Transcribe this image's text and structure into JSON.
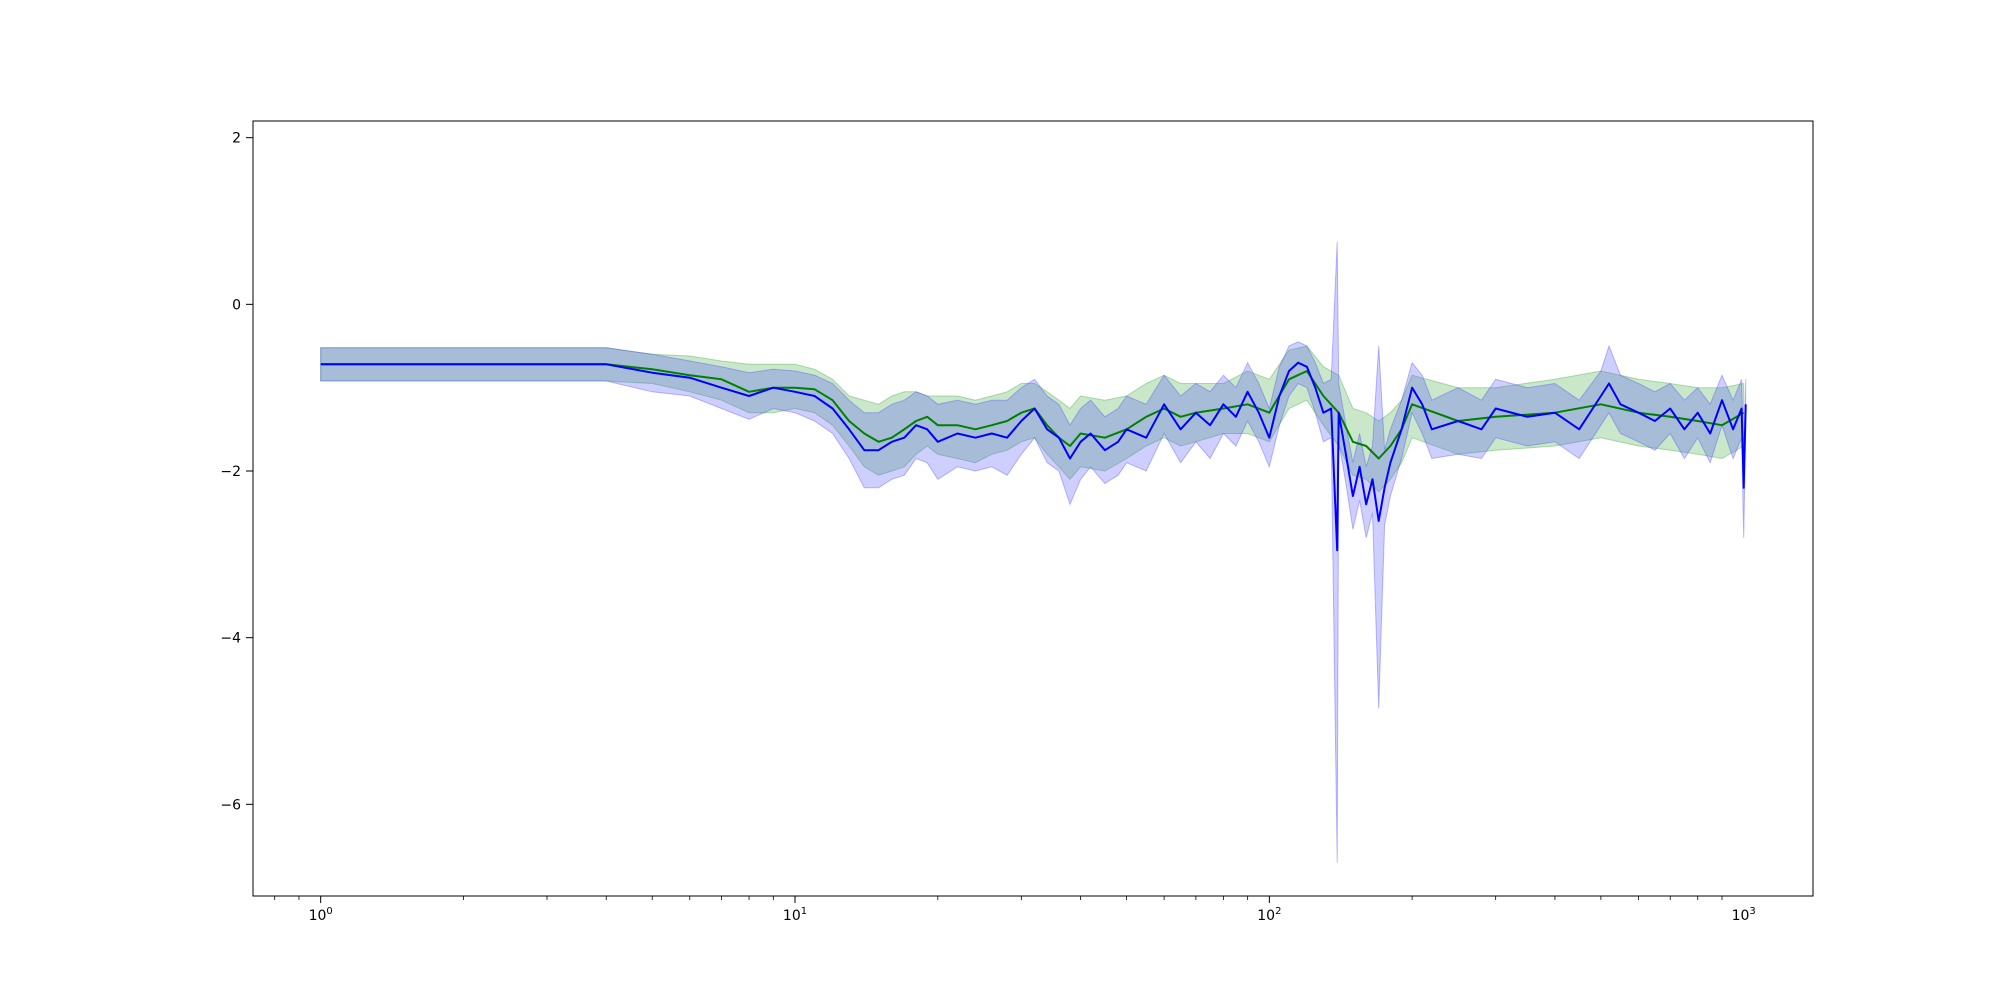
{
  "chart_data": {
    "type": "line",
    "title": "",
    "xlabel": "",
    "ylabel": "",
    "xscale": "log",
    "xlim": [
      0.72,
      1400
    ],
    "ylim": [
      -7.1,
      2.2
    ],
    "grid": false,
    "x_tick_labels": [
      {
        "value": 1,
        "label": "10",
        "exp": "0"
      },
      {
        "value": 10,
        "label": "10",
        "exp": "1"
      },
      {
        "value": 100,
        "label": "10",
        "exp": "2"
      },
      {
        "value": 1000,
        "label": "10",
        "exp": "3"
      }
    ],
    "y_tick_labels": [
      {
        "value": 2,
        "label": "2"
      },
      {
        "value": 0,
        "label": "0"
      },
      {
        "value": -2,
        "label": "−2"
      },
      {
        "value": -4,
        "label": "−4"
      },
      {
        "value": -6,
        "label": "−6"
      }
    ],
    "series": [
      {
        "color": "#008000",
        "band_color": "#2ca02c",
        "x": [
          1,
          2,
          3,
          4,
          5,
          6,
          7,
          8,
          9,
          10,
          11,
          12,
          13,
          14,
          15,
          16,
          17,
          18,
          19,
          20,
          22,
          24,
          26,
          28,
          30,
          32,
          34,
          36,
          38,
          40,
          45,
          50,
          55,
          60,
          65,
          70,
          80,
          90,
          100,
          110,
          120,
          130,
          140,
          150,
          160,
          170,
          180,
          190,
          200,
          250,
          300,
          400,
          500,
          600,
          700,
          800,
          900,
          1000
        ],
        "y": [
          -0.72,
          -0.72,
          -0.72,
          -0.72,
          -0.78,
          -0.85,
          -0.9,
          -1.05,
          -1.0,
          -1.0,
          -1.02,
          -1.15,
          -1.4,
          -1.55,
          -1.65,
          -1.6,
          -1.5,
          -1.4,
          -1.35,
          -1.45,
          -1.45,
          -1.5,
          -1.45,
          -1.4,
          -1.3,
          -1.25,
          -1.45,
          -1.6,
          -1.7,
          -1.55,
          -1.6,
          -1.5,
          -1.35,
          -1.25,
          -1.35,
          -1.3,
          -1.25,
          -1.2,
          -1.3,
          -0.9,
          -0.8,
          -1.1,
          -1.3,
          -1.65,
          -1.7,
          -1.85,
          -1.7,
          -1.5,
          -1.2,
          -1.4,
          -1.35,
          -1.3,
          -1.2,
          -1.3,
          -1.35,
          -1.4,
          -1.45,
          -1.3
        ],
        "upper": [
          -0.52,
          -0.52,
          -0.52,
          -0.52,
          -0.6,
          -0.62,
          -0.68,
          -0.72,
          -0.72,
          -0.72,
          -0.78,
          -0.9,
          -1.1,
          -1.15,
          -1.2,
          -1.1,
          -1.05,
          -1.05,
          -1.1,
          -1.1,
          -1.1,
          -1.15,
          -1.1,
          -1.05,
          -0.95,
          -0.95,
          -1.05,
          -1.15,
          -1.25,
          -1.1,
          -1.15,
          -1.1,
          -0.95,
          -0.85,
          -0.95,
          -0.95,
          -0.95,
          -0.8,
          -0.9,
          -0.55,
          -0.5,
          -0.75,
          -0.85,
          -1.25,
          -1.3,
          -1.4,
          -1.3,
          -1.15,
          -0.85,
          -1.0,
          -1.0,
          -0.9,
          -0.8,
          -0.9,
          -0.95,
          -1.0,
          -1.0,
          -0.95
        ],
        "lower": [
          -0.92,
          -0.92,
          -0.92,
          -0.92,
          -0.95,
          -1.05,
          -1.15,
          -1.3,
          -1.3,
          -1.25,
          -1.3,
          -1.45,
          -1.7,
          -1.95,
          -2.05,
          -2.0,
          -1.95,
          -1.8,
          -1.7,
          -1.8,
          -1.85,
          -1.9,
          -1.8,
          -1.75,
          -1.65,
          -1.6,
          -1.8,
          -1.95,
          -2.1,
          -1.95,
          -2.0,
          -1.85,
          -1.7,
          -1.6,
          -1.7,
          -1.65,
          -1.55,
          -1.55,
          -1.65,
          -1.25,
          -1.15,
          -1.45,
          -1.7,
          -2.05,
          -2.1,
          -2.25,
          -2.1,
          -1.9,
          -1.6,
          -1.8,
          -1.75,
          -1.7,
          -1.6,
          -1.7,
          -1.75,
          -1.8,
          -1.85,
          -1.7
        ]
      },
      {
        "color": "#0000ff",
        "band_color": "#4040ff",
        "x": [
          1,
          2,
          3,
          4,
          5,
          6,
          7,
          8,
          9,
          10,
          11,
          12,
          13,
          14,
          15,
          16,
          17,
          18,
          19,
          20,
          22,
          24,
          26,
          28,
          30,
          32,
          34,
          36,
          38,
          40,
          42,
          45,
          48,
          50,
          55,
          60,
          65,
          70,
          75,
          80,
          85,
          90,
          95,
          100,
          105,
          110,
          115,
          120,
          125,
          130,
          135,
          139,
          140,
          145,
          150,
          155,
          160,
          165,
          170,
          175,
          180,
          190,
          200,
          210,
          220,
          250,
          280,
          300,
          350,
          400,
          450,
          500,
          520,
          550,
          600,
          650,
          700,
          750,
          800,
          850,
          900,
          950,
          990,
          1000,
          1010
        ],
        "y": [
          -0.72,
          -0.72,
          -0.72,
          -0.72,
          -0.82,
          -0.88,
          -1.0,
          -1.1,
          -1.0,
          -1.05,
          -1.1,
          -1.25,
          -1.5,
          -1.75,
          -1.75,
          -1.65,
          -1.6,
          -1.45,
          -1.5,
          -1.65,
          -1.55,
          -1.6,
          -1.55,
          -1.6,
          -1.4,
          -1.25,
          -1.5,
          -1.6,
          -1.85,
          -1.65,
          -1.55,
          -1.75,
          -1.65,
          -1.5,
          -1.6,
          -1.2,
          -1.5,
          -1.3,
          -1.45,
          -1.2,
          -1.35,
          -1.05,
          -1.3,
          -1.6,
          -1.1,
          -0.8,
          -0.7,
          -0.75,
          -1.0,
          -1.3,
          -1.25,
          -2.95,
          -1.3,
          -1.8,
          -2.3,
          -1.95,
          -2.4,
          -2.1,
          -2.6,
          -2.2,
          -1.9,
          -1.5,
          -1.0,
          -1.2,
          -1.5,
          -1.4,
          -1.5,
          -1.25,
          -1.35,
          -1.3,
          -1.5,
          -1.1,
          -0.95,
          -1.2,
          -1.3,
          -1.4,
          -1.25,
          -1.5,
          -1.3,
          -1.55,
          -1.15,
          -1.5,
          -1.25,
          -2.2,
          -1.2
        ],
        "upper": [
          -0.52,
          -0.52,
          -0.52,
          -0.52,
          -0.6,
          -0.68,
          -0.75,
          -0.82,
          -0.78,
          -0.8,
          -0.85,
          -0.95,
          -1.15,
          -1.3,
          -1.3,
          -1.2,
          -1.15,
          -1.05,
          -1.1,
          -1.2,
          -1.15,
          -1.2,
          -1.15,
          -1.15,
          -1.0,
          -0.9,
          -1.1,
          -1.2,
          -1.45,
          -1.25,
          -1.15,
          -1.35,
          -1.25,
          -1.1,
          -1.2,
          -0.85,
          -1.1,
          -0.95,
          -1.05,
          -0.85,
          -1.0,
          -0.7,
          -0.95,
          -1.25,
          -0.75,
          -0.5,
          -0.45,
          -0.5,
          -0.7,
          -0.95,
          -0.9,
          0.75,
          -0.95,
          -1.45,
          -1.9,
          -1.55,
          -1.95,
          -1.7,
          -0.5,
          -1.75,
          -1.5,
          -1.15,
          -0.7,
          -0.85,
          -1.15,
          -1.0,
          -1.15,
          -0.9,
          -1.0,
          -0.95,
          -1.15,
          -0.8,
          -0.5,
          -0.85,
          -0.95,
          -1.05,
          -0.95,
          -1.15,
          -1.0,
          -1.2,
          -0.85,
          -1.15,
          -0.9,
          -1.85,
          -0.9
        ],
        "lower": [
          -0.92,
          -0.92,
          -0.92,
          -0.92,
          -1.05,
          -1.1,
          -1.25,
          -1.38,
          -1.25,
          -1.3,
          -1.4,
          -1.55,
          -1.85,
          -2.2,
          -2.2,
          -2.1,
          -2.05,
          -1.85,
          -1.9,
          -2.1,
          -1.95,
          -2.0,
          -1.95,
          -2.05,
          -1.8,
          -1.6,
          -1.9,
          -2.0,
          -2.4,
          -2.1,
          -1.95,
          -2.15,
          -2.05,
          -1.9,
          -2.0,
          -1.55,
          -1.9,
          -1.65,
          -1.85,
          -1.55,
          -1.7,
          -1.4,
          -1.65,
          -1.95,
          -1.45,
          -1.1,
          -0.95,
          -1.0,
          -1.3,
          -1.65,
          -1.6,
          -6.7,
          -1.65,
          -2.15,
          -2.7,
          -2.35,
          -2.8,
          -2.5,
          -4.85,
          -2.65,
          -2.3,
          -1.85,
          -1.3,
          -1.55,
          -1.85,
          -1.8,
          -1.85,
          -1.6,
          -1.7,
          -1.65,
          -1.85,
          -1.45,
          -1.3,
          -1.55,
          -1.65,
          -1.75,
          -1.55,
          -1.85,
          -1.6,
          -1.9,
          -1.45,
          -1.85,
          -1.6,
          -2.8,
          -1.5
        ]
      }
    ]
  }
}
